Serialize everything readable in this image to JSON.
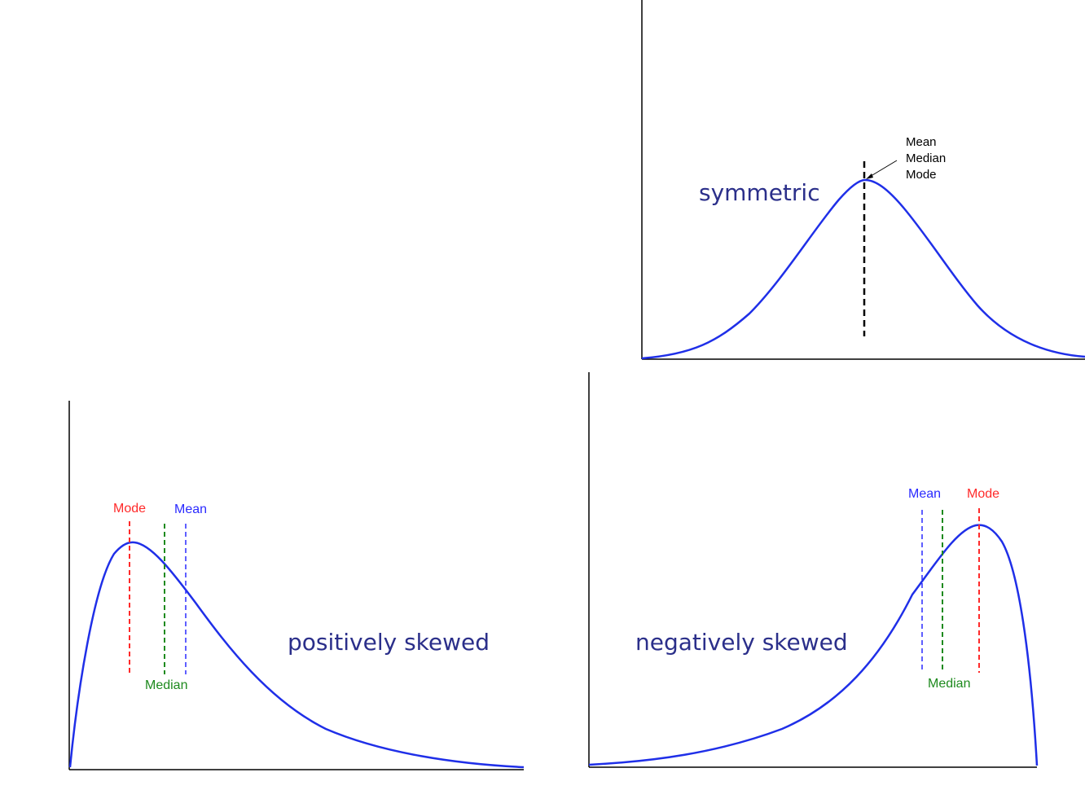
{
  "colors": {
    "curve": "#1f2fe8",
    "caption": "#2b2f8a",
    "mode": "#ff2a2a",
    "median": "#1e8a1e",
    "mean": "#2a2aff",
    "axis": "#000000"
  },
  "symmetric": {
    "caption": "symmetric",
    "label_mean": "Mean",
    "label_median": "Median",
    "label_mode": "Mode"
  },
  "positive": {
    "caption": "positively skewed",
    "label_mode": "Mode",
    "label_mean": "Mean",
    "label_median": "Median"
  },
  "negative": {
    "caption": "negatively skewed",
    "label_mean": "Mean",
    "label_mode": "Mode",
    "label_median": "Median"
  }
}
